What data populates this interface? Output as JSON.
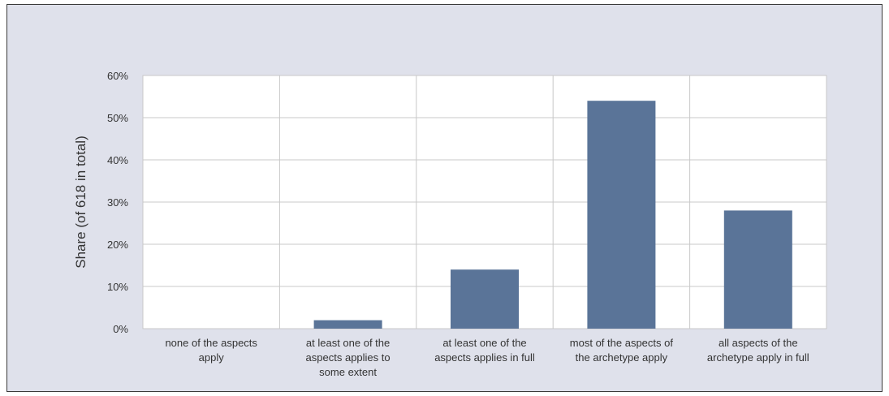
{
  "chart_data": {
    "type": "bar",
    "title": "",
    "xlabel": "",
    "ylabel": "Share (of 618 in total)",
    "categories": [
      "none of the aspects apply",
      "at least one of the aspects applies to some extent",
      "at least one of the aspects applies in full",
      "most of the aspects of the archetype apply",
      "all aspects of the archetype apply in full"
    ],
    "category_label_lines": [
      [
        "none of the aspects",
        "apply"
      ],
      [
        "at least one of the",
        "aspects applies to",
        "some extent"
      ],
      [
        "at least one of the",
        "aspects applies in full"
      ],
      [
        "most of the aspects of",
        "the archetype apply"
      ],
      [
        "all aspects of the",
        "archetype apply in full"
      ]
    ],
    "values": [
      0,
      2,
      14,
      54,
      28
    ],
    "ylim": [
      0,
      60
    ],
    "yticks": [
      0,
      10,
      20,
      30,
      40,
      50,
      60
    ],
    "ytick_labels": [
      "0%",
      "10%",
      "20%",
      "30%",
      "40%",
      "50%",
      "60%"
    ],
    "grid": true,
    "legend": "none",
    "colors": {
      "bar": "#5a7498",
      "plot_background": "#ffffff",
      "frame_background": "#dfe1eb",
      "grid": "#c8c8c8"
    }
  }
}
